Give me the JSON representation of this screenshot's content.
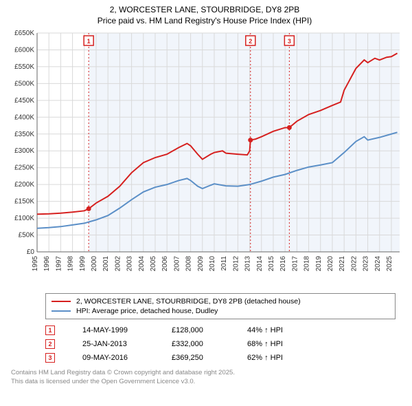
{
  "title_line1": "2, WORCESTER LANE, STOURBRIDGE, DY8 2PB",
  "title_line2": "Price paid vs. HM Land Registry's House Price Index (HPI)",
  "chart": {
    "type": "line",
    "plot_bg": "#ffffff",
    "shade_bg": "#f1f5fb",
    "grid_color": "#d9d9d9",
    "axis_color": "#666666",
    "x_min": 1995,
    "x_max": 2025.7,
    "y_min": 0,
    "y_max": 650000,
    "y_ticks": [
      0,
      50000,
      100000,
      150000,
      200000,
      250000,
      300000,
      350000,
      400000,
      450000,
      500000,
      550000,
      600000,
      650000
    ],
    "y_tick_labels": [
      "£0",
      "£50K",
      "£100K",
      "£150K",
      "£200K",
      "£250K",
      "£300K",
      "£350K",
      "£400K",
      "£450K",
      "£500K",
      "£550K",
      "£600K",
      "£650K"
    ],
    "x_ticks": [
      1995,
      1996,
      1997,
      1998,
      1999,
      2000,
      2001,
      2002,
      2003,
      2004,
      2005,
      2006,
      2007,
      2008,
      2009,
      2010,
      2011,
      2012,
      2013,
      2014,
      2015,
      2016,
      2017,
      2018,
      2019,
      2020,
      2021,
      2022,
      2023,
      2024,
      2025
    ],
    "shade_start_x": 1999.37,
    "series_price": {
      "color": "#d6201f",
      "width": 2,
      "points": [
        [
          1995,
          112000
        ],
        [
          1996,
          113000
        ],
        [
          1997,
          115000
        ],
        [
          1998,
          118000
        ],
        [
          1999,
          122000
        ],
        [
          1999.37,
          128000
        ],
        [
          2000,
          145000
        ],
        [
          2001,
          165000
        ],
        [
          2002,
          195000
        ],
        [
          2003,
          235000
        ],
        [
          2004,
          265000
        ],
        [
          2005,
          280000
        ],
        [
          2006,
          290000
        ],
        [
          2007,
          310000
        ],
        [
          2007.7,
          322000
        ],
        [
          2008,
          315000
        ],
        [
          2008.6,
          290000
        ],
        [
          2009,
          275000
        ],
        [
          2009.7,
          290000
        ],
        [
          2010,
          295000
        ],
        [
          2010.7,
          300000
        ],
        [
          2011,
          293000
        ],
        [
          2012,
          290000
        ],
        [
          2012.8,
          288000
        ],
        [
          2013,
          300000
        ],
        [
          2013.07,
          332000
        ],
        [
          2013.5,
          335000
        ],
        [
          2014,
          342000
        ],
        [
          2015,
          358000
        ],
        [
          2016,
          369000
        ],
        [
          2016.36,
          369250
        ],
        [
          2017,
          388000
        ],
        [
          2018,
          408000
        ],
        [
          2019,
          420000
        ],
        [
          2020,
          435000
        ],
        [
          2020.7,
          445000
        ],
        [
          2021,
          480000
        ],
        [
          2022,
          545000
        ],
        [
          2022.7,
          570000
        ],
        [
          2023,
          562000
        ],
        [
          2023.6,
          575000
        ],
        [
          2024,
          570000
        ],
        [
          2024.6,
          578000
        ],
        [
          2025,
          580000
        ],
        [
          2025.5,
          590000
        ]
      ]
    },
    "series_hpi": {
      "color": "#5b8fc7",
      "width": 2,
      "points": [
        [
          1995,
          70000
        ],
        [
          1996,
          72000
        ],
        [
          1997,
          75000
        ],
        [
          1998,
          80000
        ],
        [
          1999,
          85000
        ],
        [
          2000,
          95000
        ],
        [
          2001,
          108000
        ],
        [
          2002,
          130000
        ],
        [
          2003,
          155000
        ],
        [
          2004,
          178000
        ],
        [
          2005,
          192000
        ],
        [
          2006,
          200000
        ],
        [
          2007,
          212000
        ],
        [
          2007.7,
          218000
        ],
        [
          2008,
          212000
        ],
        [
          2008.6,
          195000
        ],
        [
          2009,
          188000
        ],
        [
          2009.7,
          198000
        ],
        [
          2010,
          202000
        ],
        [
          2011,
          196000
        ],
        [
          2012,
          195000
        ],
        [
          2013,
          200000
        ],
        [
          2014,
          210000
        ],
        [
          2015,
          222000
        ],
        [
          2016,
          230000
        ],
        [
          2017,
          242000
        ],
        [
          2018,
          252000
        ],
        [
          2019,
          258000
        ],
        [
          2020,
          265000
        ],
        [
          2021,
          295000
        ],
        [
          2022,
          328000
        ],
        [
          2022.7,
          342000
        ],
        [
          2023,
          332000
        ],
        [
          2024,
          340000
        ],
        [
          2025,
          350000
        ],
        [
          2025.5,
          355000
        ]
      ]
    },
    "sale_markers": [
      {
        "n": "1",
        "x": 1999.37,
        "y": 128000,
        "color": "#d6201f"
      },
      {
        "n": "2",
        "x": 2013.07,
        "y": 332000,
        "color": "#d6201f"
      },
      {
        "n": "3",
        "x": 2016.36,
        "y": 369250,
        "color": "#d6201f"
      }
    ]
  },
  "legend": {
    "rows": [
      {
        "color": "#d6201f",
        "label": "2, WORCESTER LANE, STOURBRIDGE, DY8 2PB (detached house)"
      },
      {
        "color": "#5b8fc7",
        "label": "HPI: Average price, detached house, Dudley"
      }
    ]
  },
  "transactions": [
    {
      "n": "1",
      "color": "#d6201f",
      "date": "14-MAY-1999",
      "price": "£128,000",
      "hpi": "44% ↑ HPI"
    },
    {
      "n": "2",
      "color": "#d6201f",
      "date": "25-JAN-2013",
      "price": "£332,000",
      "hpi": "68% ↑ HPI"
    },
    {
      "n": "3",
      "color": "#d6201f",
      "date": "09-MAY-2016",
      "price": "£369,250",
      "hpi": "62% ↑ HPI"
    }
  ],
  "footer_line1": "Contains HM Land Registry data © Crown copyright and database right 2025.",
  "footer_line2": "This data is licensed under the Open Government Licence v3.0."
}
